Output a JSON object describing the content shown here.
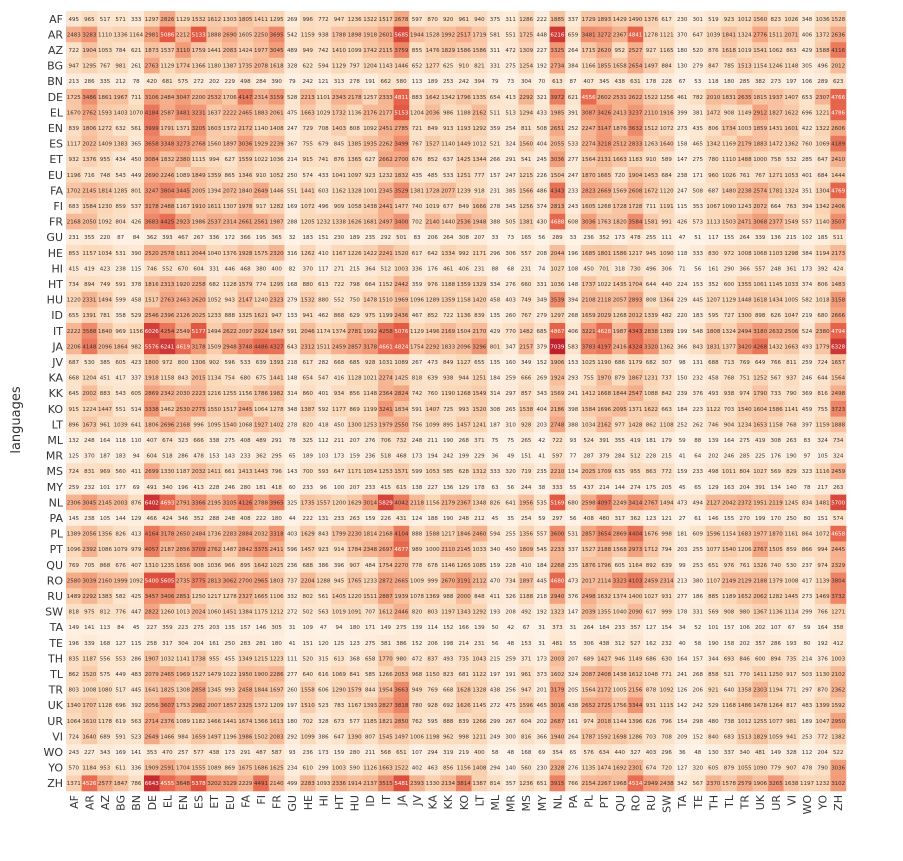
{
  "chart_data": {
    "type": "heatmap",
    "ylabel": "languages",
    "xlabel": "",
    "languages": [
      "AF",
      "AR",
      "AZ",
      "BG",
      "BN",
      "DE",
      "EL",
      "EN",
      "ES",
      "ET",
      "EU",
      "FA",
      "FI",
      "FR",
      "GU",
      "HE",
      "HI",
      "HT",
      "HU",
      "ID",
      "IT",
      "JA",
      "JV",
      "KA",
      "KK",
      "KO",
      "LT",
      "ML",
      "MR",
      "MS",
      "MY",
      "NL",
      "PA",
      "PL",
      "PT",
      "QU",
      "RO",
      "RU",
      "SW",
      "TA",
      "TE",
      "TH",
      "TL",
      "TR",
      "UK",
      "UR",
      "VI",
      "WO",
      "YO",
      "ZH"
    ],
    "row_scale": [
      1.5,
      3.0,
      2.0,
      1.5,
      0.4,
      3.0,
      2.5,
      2.0,
      2.2,
      1.5,
      1.4,
      2.2,
      1.6,
      2.5,
      0.3,
      1.5,
      0.5,
      1.3,
      1.8,
      1.3,
      3.0,
      3.5,
      1.0,
      1.2,
      1.6,
      1.8,
      1.5,
      0.4,
      0.3,
      1.3,
      0.3,
      3.2,
      0.3,
      2.5,
      2.5,
      1.2,
      3.0,
      1.8,
      1.4,
      0.2,
      0.3,
      1.0,
      1.5,
      1.8,
      1.9,
      1.4,
      1.5,
      0.4,
      1.4,
      3.5
    ],
    "col_scale": [
      1.0,
      1.5,
      1.0,
      0.8,
      0.5,
      2.4,
      2.2,
      1.9,
      2.0,
      1.3,
      1.2,
      1.6,
      1.6,
      1.8,
      0.3,
      1.0,
      0.6,
      0.9,
      1.1,
      1.1,
      2.2,
      2.5,
      0.8,
      1.0,
      1.1,
      1.3,
      1.2,
      0.3,
      0.3,
      1.0,
      0.3,
      2.4,
      0.3,
      1.8,
      1.9,
      1.4,
      2.1,
      1.2,
      0.9,
      0.2,
      0.3,
      0.8,
      1.0,
      1.2,
      1.5,
      1.1,
      1.0,
      0.4,
      1.0,
      2.5
    ],
    "cell_unit": 600,
    "value_max": 10000,
    "color_scale": [
      "#fff5eb",
      "#fbd9b9",
      "#f4a27e",
      "#e45b43",
      "#b8172a",
      "#67000d"
    ]
  }
}
